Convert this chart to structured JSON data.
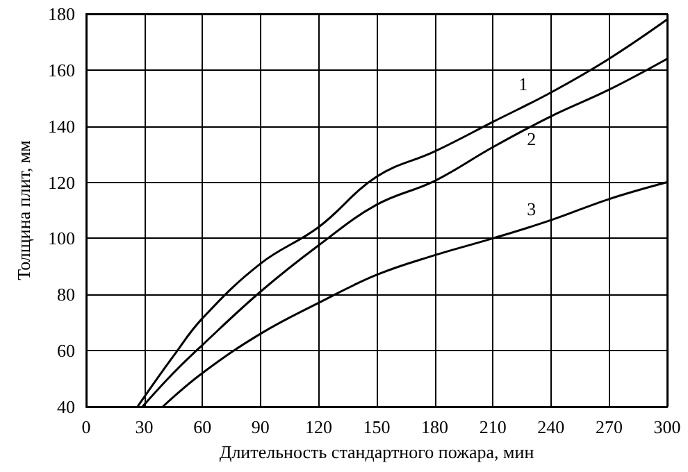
{
  "chart_data": {
    "type": "line",
    "xlabel": "Длительность стандартного пожара, мин",
    "ylabel": "Толщина плит, мм",
    "xlim": [
      0,
      300
    ],
    "xticks": [
      0,
      30,
      60,
      90,
      120,
      150,
      180,
      210,
      240,
      270,
      300
    ],
    "ylim": [
      40,
      180
    ],
    "yticks": [
      40,
      60,
      80,
      100,
      120,
      140,
      160,
      180
    ],
    "grid": true,
    "legend": false,
    "marker": "none",
    "line_style": "solid",
    "series": [
      {
        "name": "1",
        "color": "#000000",
        "x": [
          26.5,
          45,
          60,
          90,
          120,
          150,
          180,
          210,
          240,
          270,
          300
        ],
        "values": [
          40,
          58,
          71.5,
          91,
          104,
          122,
          131,
          141.5,
          152,
          164,
          178
        ]
      },
      {
        "name": "2",
        "color": "#000000",
        "x": [
          29,
          45,
          60,
          90,
          120,
          150,
          180,
          210,
          240,
          270,
          300
        ],
        "values": [
          40,
          52,
          62,
          81,
          97.5,
          112,
          120.5,
          132.5,
          143.5,
          153,
          164
        ]
      },
      {
        "name": "3",
        "color": "#000000",
        "x": [
          39.5,
          60,
          90,
          120,
          150,
          180,
          210,
          240,
          270,
          300
        ],
        "values": [
          40,
          52,
          66,
          77,
          87,
          94,
          100,
          106.5,
          114,
          120
        ]
      }
    ]
  }
}
